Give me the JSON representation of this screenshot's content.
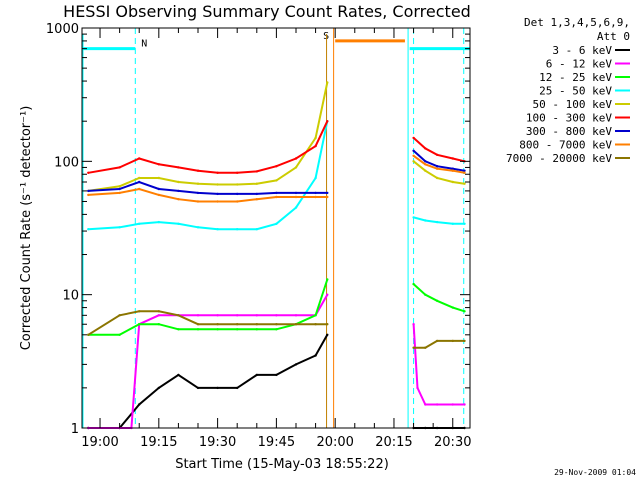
{
  "chart_data": {
    "type": "line",
    "title": "HESSI Observing Summary Count Rates, Corrected",
    "xlabel": "Start Time (15-May-03 18:55:22)",
    "ylabel": "Corrected Count Rate (s⁻¹ detector⁻¹)",
    "y_scale": "log",
    "ylim": [
      1,
      1000
    ],
    "y_ticks": [
      "1",
      "10",
      "100",
      "1000"
    ],
    "x_ticks": [
      "19:00",
      "19:15",
      "19:30",
      "19:45",
      "20:00",
      "20:15",
      "20:30"
    ],
    "x_tick_minutes": [
      0,
      15,
      30,
      45,
      60,
      75,
      90
    ],
    "xlim_minutes": [
      -4.6,
      94.4
    ],
    "legend_title_1": "Det 1,3,4,5,6,9,",
    "legend_title_2": "Att 0",
    "timestamp": "29-Nov-2009 01:04",
    "gaps": [
      {
        "start": 58.2,
        "end": 79.0
      }
    ],
    "markers": [
      {
        "label": "N",
        "color": "#00ffff",
        "start": -4.6,
        "end": 9.0,
        "level": 700
      },
      {
        "label": "S",
        "color": "#ff7f00",
        "start": 60.0,
        "end": 77.8,
        "level": 800
      },
      {
        "label": "",
        "color": "#00ffff",
        "start": 79.0,
        "end": 94.4,
        "level": 700
      }
    ],
    "series": [
      {
        "name": "3 - 6 keV",
        "color": "#000000",
        "x": [
          -3,
          5,
          10,
          15,
          20,
          25,
          30,
          35,
          40,
          45,
          50,
          55,
          58,
          80,
          83,
          86,
          90,
          93
        ],
        "y": [
          1,
          1,
          1.5,
          2,
          2.5,
          2,
          2,
          2,
          2.5,
          2.5,
          3,
          3.5,
          5,
          1,
          1,
          1,
          1,
          1
        ]
      },
      {
        "name": "6 - 12 keV",
        "color": "#ff00ff",
        "x": [
          -3,
          5,
          8,
          10,
          15,
          20,
          25,
          30,
          35,
          40,
          45,
          50,
          55,
          58,
          80,
          81,
          83,
          86,
          90,
          93
        ],
        "y": [
          1,
          1,
          1,
          6,
          7,
          7,
          7,
          7,
          7,
          7,
          7,
          7,
          7,
          10,
          6,
          2,
          1.5,
          1.5,
          1.5,
          1.5
        ]
      },
      {
        "name": "12 - 25 keV",
        "color": "#00ff00",
        "x": [
          -3,
          5,
          10,
          15,
          20,
          25,
          30,
          35,
          40,
          45,
          50,
          55,
          58,
          80,
          83,
          86,
          90,
          93
        ],
        "y": [
          5,
          5,
          6,
          6,
          5.5,
          5.5,
          5.5,
          5.5,
          5.5,
          5.5,
          6,
          7,
          13,
          12,
          10,
          9,
          8,
          7.5
        ]
      },
      {
        "name": "25 - 50 keV",
        "color": "#00ffff",
        "x": [
          -3,
          5,
          10,
          15,
          20,
          25,
          30,
          35,
          40,
          45,
          50,
          55,
          58,
          80,
          83,
          86,
          90,
          93
        ],
        "y": [
          31,
          32,
          34,
          35,
          34,
          32,
          31,
          31,
          31,
          34,
          45,
          75,
          200,
          38,
          36,
          35,
          34,
          34
        ]
      },
      {
        "name": "50 - 100 keV",
        "color": "#cccc00",
        "x": [
          -3,
          5,
          10,
          15,
          20,
          25,
          30,
          35,
          40,
          45,
          50,
          55,
          58,
          80,
          83,
          86,
          90,
          93
        ],
        "y": [
          60,
          65,
          75,
          75,
          70,
          68,
          67,
          67,
          68,
          72,
          90,
          150,
          390,
          100,
          85,
          75,
          70,
          68
        ]
      },
      {
        "name": "100 - 300 keV",
        "color": "#ff0000",
        "x": [
          -3,
          5,
          10,
          15,
          20,
          25,
          30,
          35,
          40,
          45,
          50,
          55,
          58,
          80,
          83,
          86,
          90,
          93
        ],
        "y": [
          82,
          90,
          105,
          95,
          90,
          85,
          82,
          82,
          84,
          92,
          105,
          130,
          200,
          150,
          125,
          112,
          105,
          100
        ]
      },
      {
        "name": "300 - 800 keV",
        "color": "#0000cc",
        "x": [
          -3,
          5,
          10,
          15,
          20,
          25,
          30,
          35,
          40,
          45,
          50,
          55,
          58,
          80,
          83,
          86,
          90,
          93
        ],
        "y": [
          60,
          62,
          70,
          62,
          60,
          58,
          57,
          57,
          57,
          58,
          58,
          58,
          58,
          120,
          100,
          92,
          88,
          85
        ]
      },
      {
        "name": "800 - 7000 keV",
        "color": "#ff7f00",
        "x": [
          -3,
          5,
          10,
          15,
          20,
          25,
          30,
          35,
          40,
          45,
          50,
          55,
          58,
          80,
          83,
          86,
          90,
          93
        ],
        "y": [
          56,
          58,
          62,
          56,
          52,
          50,
          50,
          50,
          52,
          54,
          54,
          54,
          54,
          110,
          95,
          88,
          85,
          82
        ]
      },
      {
        "name": "7000 - 20000 keV",
        "color": "#8b7500",
        "x": [
          -3,
          5,
          10,
          15,
          20,
          25,
          30,
          35,
          40,
          45,
          50,
          55,
          58,
          80,
          83,
          86,
          90,
          93
        ],
        "y": [
          5,
          7,
          7.5,
          7.5,
          7,
          6,
          6,
          6,
          6,
          6,
          6,
          6,
          6,
          4,
          4,
          4.5,
          4.5,
          4.5
        ]
      }
    ]
  }
}
